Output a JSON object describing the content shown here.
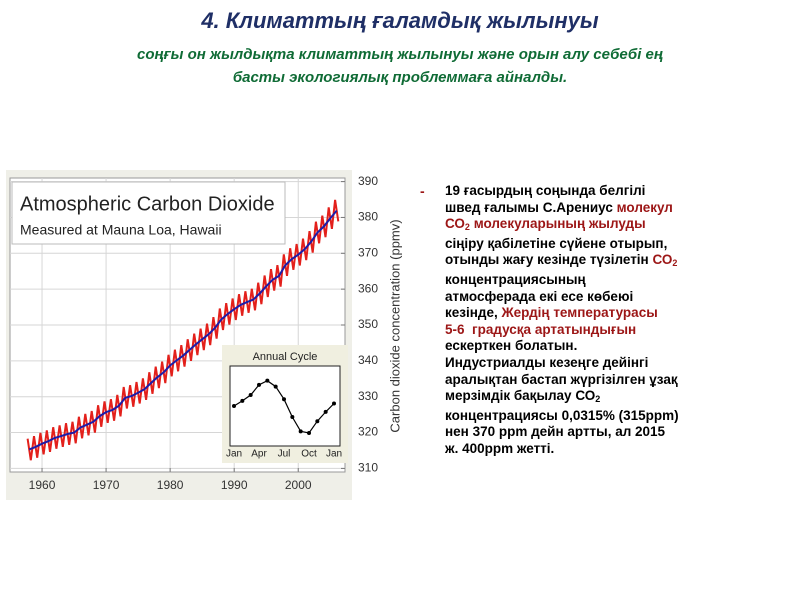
{
  "slide": {
    "title": "4. Климаттың ғаламдық жылынуы",
    "title_color": "#1f2f66",
    "subtitle": [
      "соңғы он жылдықта климаттың жылынуы және орын алу себебі ең",
      "басты экологиялық проблеммаға айналды."
    ],
    "subtitle_color": "#0f6b35",
    "bullet": "-",
    "text_lines": [
      [
        {
          "text": "19 ғасырдың соңында белгілі",
          "color": "#000000"
        }
      ],
      [
        {
          "text": "швед ғалымы С.Арениус ",
          "color": "#000000"
        },
        {
          "text": "молекул",
          "color": "#9c1616"
        }
      ],
      [
        {
          "text": "СО",
          "color": "#9c1616"
        },
        {
          "text": "2",
          "color": "#9c1616",
          "sub": true
        },
        {
          "text": " молекуларының жылуды",
          "color": "#9c1616"
        }
      ],
      [
        {
          "text": "сіңіру қабілетіне сүйене отырып,",
          "color": "#000000"
        }
      ],
      [
        {
          "text": "отынды жағу кезінде түзілетін ",
          "color": "#000000"
        },
        {
          "text": "СО",
          "color": "#9c1616"
        },
        {
          "text": "2",
          "color": "#9c1616",
          "sub": true
        }
      ],
      [
        {
          "text": "концентрациясының",
          "color": "#000000"
        }
      ],
      [
        {
          "text": "атмосферада екі есе көбеюі",
          "color": "#000000"
        }
      ],
      [
        {
          "text": "кезінде, ",
          "color": "#000000"
        },
        {
          "text": "Жердің температурасы",
          "color": "#9c1616"
        }
      ],
      [
        {
          "text": "5-6  градусқа артатындығын",
          "color": "#9c1616"
        }
      ],
      [
        {
          "text": "ескерткен болатын.",
          "color": "#000000"
        }
      ],
      [
        {
          "text": "Индустриалды кезеңге дейінгі",
          "color": "#000000"
        }
      ],
      [
        {
          "text": "аралықтан бастап жүргізілген ұзақ",
          "color": "#000000"
        }
      ],
      [
        {
          "text": "мерзімдік бақылау СО",
          "color": "#000000"
        },
        {
          "text": "2",
          "color": "#000000",
          "sub": true
        }
      ],
      [
        {
          "text": "концентрациясы 0,0315% (315ppm)",
          "color": "#000000"
        }
      ],
      [
        {
          "text": "нен 370 ppm дейн артты, ал 2015",
          "color": "#000000"
        }
      ],
      [
        {
          "text": "ж. 400ppm жетті.",
          "color": "#000000"
        }
      ]
    ]
  },
  "chart_data": [
    {
      "type": "line",
      "title": "Atmospheric Carbon Dioxide",
      "subtitle": "Measured at Mauna Loa, Hawaii",
      "y_label": "Carbon dioxide concentration (ppmv)",
      "grid": true,
      "xlim": [
        1955,
        2007.3
      ],
      "xticks": [
        1960,
        1970,
        1980,
        1990,
        2000
      ],
      "ylim": [
        309,
        391
      ],
      "yticks": [
        310,
        320,
        330,
        340,
        350,
        360,
        370,
        380,
        390
      ],
      "series": [
        {
          "color": "#e3201b",
          "x": [
            1957.75,
            1958.25,
            1958.75,
            1959.25,
            1959.75,
            1960.25,
            1960.75,
            1961.25,
            1961.75,
            1962.25,
            1962.75,
            1963.25,
            1963.75,
            1964.25,
            1964.75,
            1965.25,
            1965.75,
            1966.25,
            1966.75,
            1967.25,
            1967.75,
            1968.25,
            1968.75,
            1969.25,
            1969.75,
            1970.25,
            1970.75,
            1971.25,
            1971.75,
            1972.25,
            1972.75,
            1973.25,
            1973.75,
            1974.25,
            1974.75,
            1975.25,
            1975.75,
            1976.25,
            1976.75,
            1977.25,
            1977.75,
            1978.25,
            1978.75,
            1979.25,
            1979.75,
            1980.25,
            1980.75,
            1981.25,
            1981.75,
            1982.25,
            1982.75,
            1983.25,
            1983.75,
            1984.25,
            1984.75,
            1985.25,
            1985.75,
            1986.25,
            1986.75,
            1987.25,
            1987.75,
            1988.25,
            1988.75,
            1989.25,
            1989.75,
            1990.25,
            1990.75,
            1991.25,
            1991.75,
            1992.25,
            1992.75,
            1993.25,
            1993.75,
            1994.25,
            1994.75,
            1995.25,
            1995.75,
            1996.25,
            1996.75,
            1997.25,
            1997.75,
            1998.25,
            1998.75,
            1999.25,
            1999.75,
            2000.25,
            2000.75,
            2001.25,
            2001.75,
            2002.25,
            2002.75,
            2003.25,
            2003.75,
            2004.25,
            2004.75,
            2005.25,
            2005.75,
            2006.25
          ],
          "values": [
            318.3,
            312.3,
            319.0,
            313.0,
            319.9,
            313.9,
            320.6,
            314.6,
            321.5,
            315.5,
            322.0,
            316.0,
            322.6,
            316.6,
            323.0,
            317.0,
            324.4,
            318.4,
            325.2,
            319.2,
            326.0,
            320.0,
            327.6,
            321.6,
            328.7,
            322.7,
            329.3,
            323.3,
            330.5,
            324.5,
            332.7,
            326.7,
            333.2,
            327.2,
            334.1,
            328.1,
            335.1,
            329.1,
            336.8,
            330.8,
            338.4,
            332.4,
            339.8,
            333.8,
            341.7,
            335.7,
            343.1,
            337.1,
            344.4,
            338.4,
            346.0,
            340.0,
            347.6,
            341.6,
            349.0,
            343.0,
            350.4,
            344.4,
            352.2,
            346.2,
            354.6,
            348.6,
            356.1,
            350.1,
            357.4,
            351.4,
            358.6,
            352.6,
            359.4,
            353.4,
            360.1,
            354.1,
            361.8,
            355.8,
            363.8,
            357.8,
            365.6,
            359.6,
            366.7,
            360.7,
            369.7,
            363.7,
            371.4,
            365.4,
            372.6,
            366.6,
            374.1,
            368.1,
            376.2,
            370.2,
            378.8,
            372.8,
            380.5,
            374.5,
            382.8,
            376.8,
            384.9,
            378.9
          ]
        },
        {
          "color": "#1c1ca8",
          "x": [
            1958,
            1959,
            1960,
            1961,
            1962,
            1963,
            1964,
            1965,
            1966,
            1967,
            1968,
            1969,
            1970,
            1971,
            1972,
            1973,
            1974,
            1975,
            1976,
            1977,
            1978,
            1979,
            1980,
            1981,
            1982,
            1983,
            1984,
            1985,
            1986,
            1987,
            1988,
            1989,
            1990,
            1991,
            1992,
            1993,
            1994,
            1995,
            1996,
            1997,
            1998,
            1999,
            2000,
            2001,
            2002,
            2003,
            2004,
            2005,
            2006
          ],
          "values": [
            315.3,
            316.0,
            316.9,
            317.6,
            318.5,
            319.0,
            319.6,
            320.0,
            321.4,
            322.2,
            323.0,
            324.6,
            325.7,
            326.3,
            327.5,
            329.7,
            330.2,
            331.1,
            332.1,
            333.8,
            335.4,
            336.8,
            338.7,
            340.1,
            341.4,
            343.0,
            344.6,
            346.0,
            347.4,
            349.2,
            351.6,
            353.1,
            354.4,
            355.6,
            356.4,
            357.1,
            358.8,
            360.8,
            362.6,
            363.7,
            366.7,
            368.4,
            369.6,
            371.1,
            373.2,
            375.8,
            377.5,
            379.8,
            381.9
          ]
        }
      ]
    },
    {
      "type": "line",
      "title": "Annual Cycle",
      "categories": [
        "Jan",
        null,
        null,
        "Apr",
        null,
        null,
        "Jul",
        null,
        null,
        "Oct",
        null,
        null,
        "Jan"
      ],
      "ylim": [
        -4.5,
        4.5
      ],
      "series": [
        {
          "color": "#000000",
          "markers": true,
          "values": [
            0,
            0.6,
            1.3,
            2.5,
            3.0,
            2.3,
            0.8,
            -1.3,
            -3.0,
            -3.2,
            -1.8,
            -0.7,
            0.3
          ]
        }
      ]
    }
  ]
}
